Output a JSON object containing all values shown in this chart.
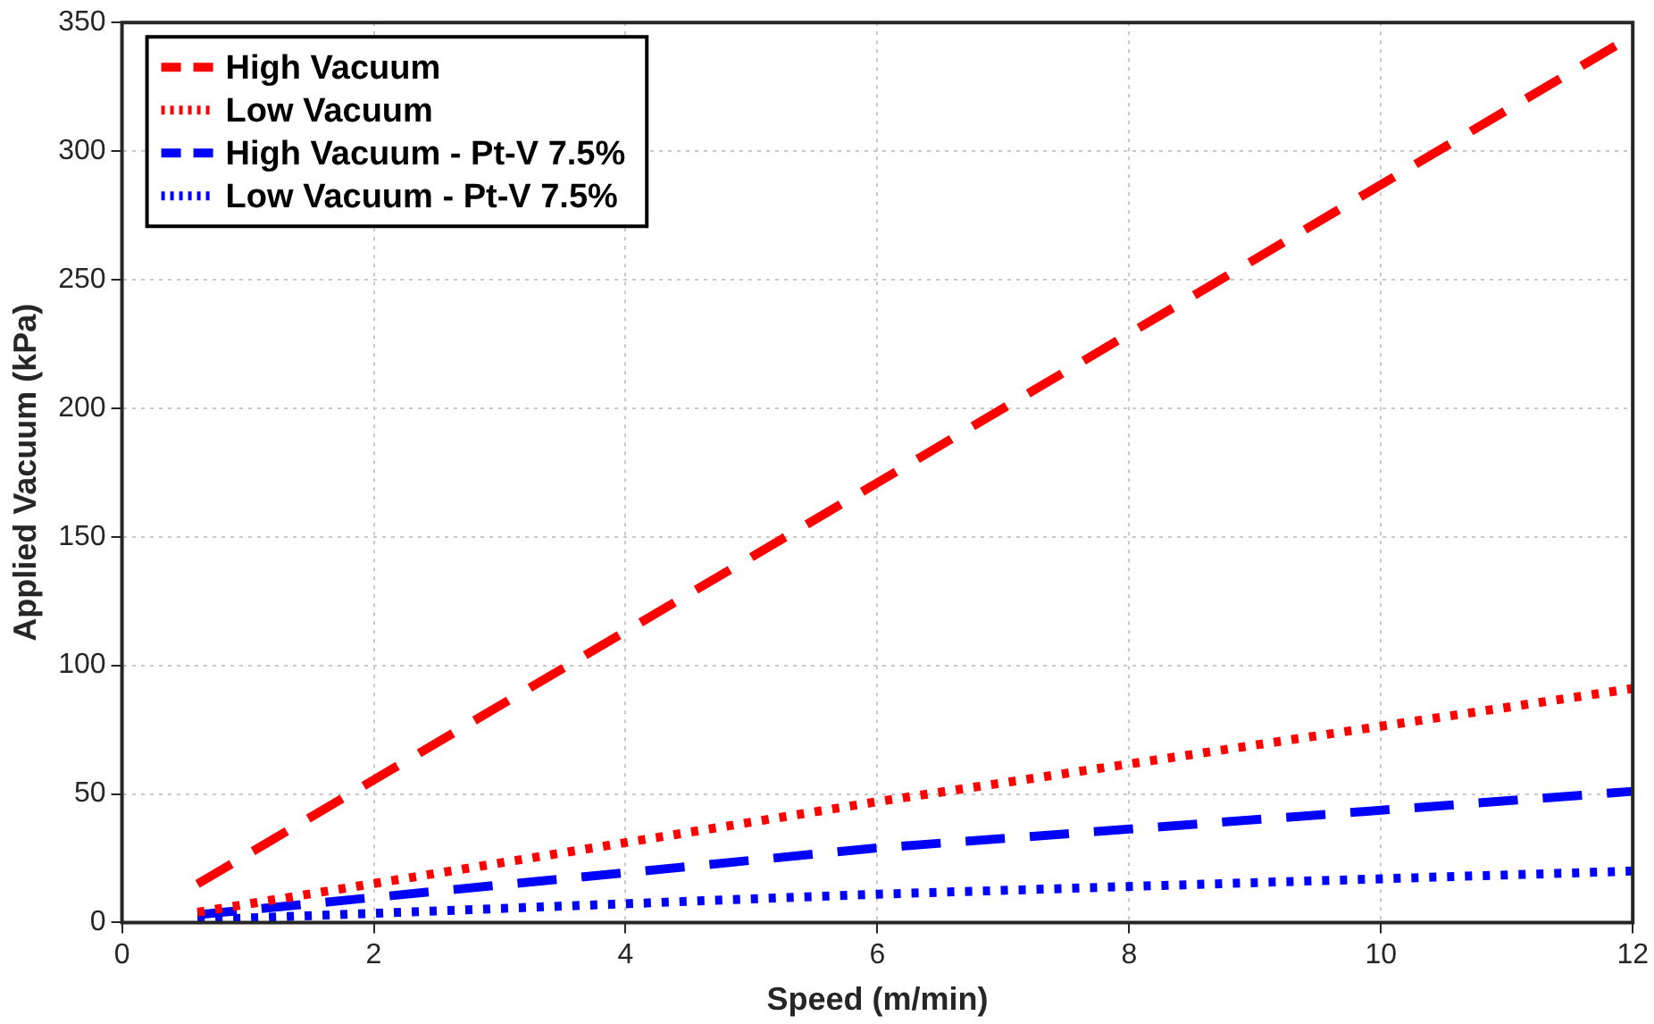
{
  "chart_data": {
    "type": "line",
    "xlabel": "Speed (m/min)",
    "ylabel": "Applied Vacuum (kPa)",
    "xlim": [
      0,
      12
    ],
    "xticks": [
      0,
      2,
      4,
      6,
      8,
      10,
      12
    ],
    "ylim": [
      0,
      350
    ],
    "yticks": [
      0,
      50,
      100,
      150,
      200,
      250,
      300,
      350
    ],
    "grid": true,
    "legend": "top left",
    "marker": "none",
    "series": [
      {
        "name": "High Vacuum",
        "color": "#ff0000",
        "line_style": "dashed",
        "x": [
          0.6,
          6,
          11.9
        ],
        "values": [
          15,
          171,
          342
        ]
      },
      {
        "name": "Low Vacuum",
        "color": "#ff0000",
        "line_style": "dotted",
        "x": [
          0.6,
          6,
          12
        ],
        "values": [
          4,
          47,
          91
        ]
      },
      {
        "name": "High Vacuum - Pt-V 7.5%",
        "color": "#0000ff",
        "line_style": "dashed",
        "x": [
          0.6,
          6,
          12
        ],
        "values": [
          3,
          29,
          51
        ]
      },
      {
        "name": "Low Vacuum - Pt-V 7.5%",
        "color": "#0000ff",
        "line_style": "dotted",
        "x": [
          0.6,
          6,
          12
        ],
        "values": [
          1,
          11,
          20
        ]
      }
    ]
  }
}
